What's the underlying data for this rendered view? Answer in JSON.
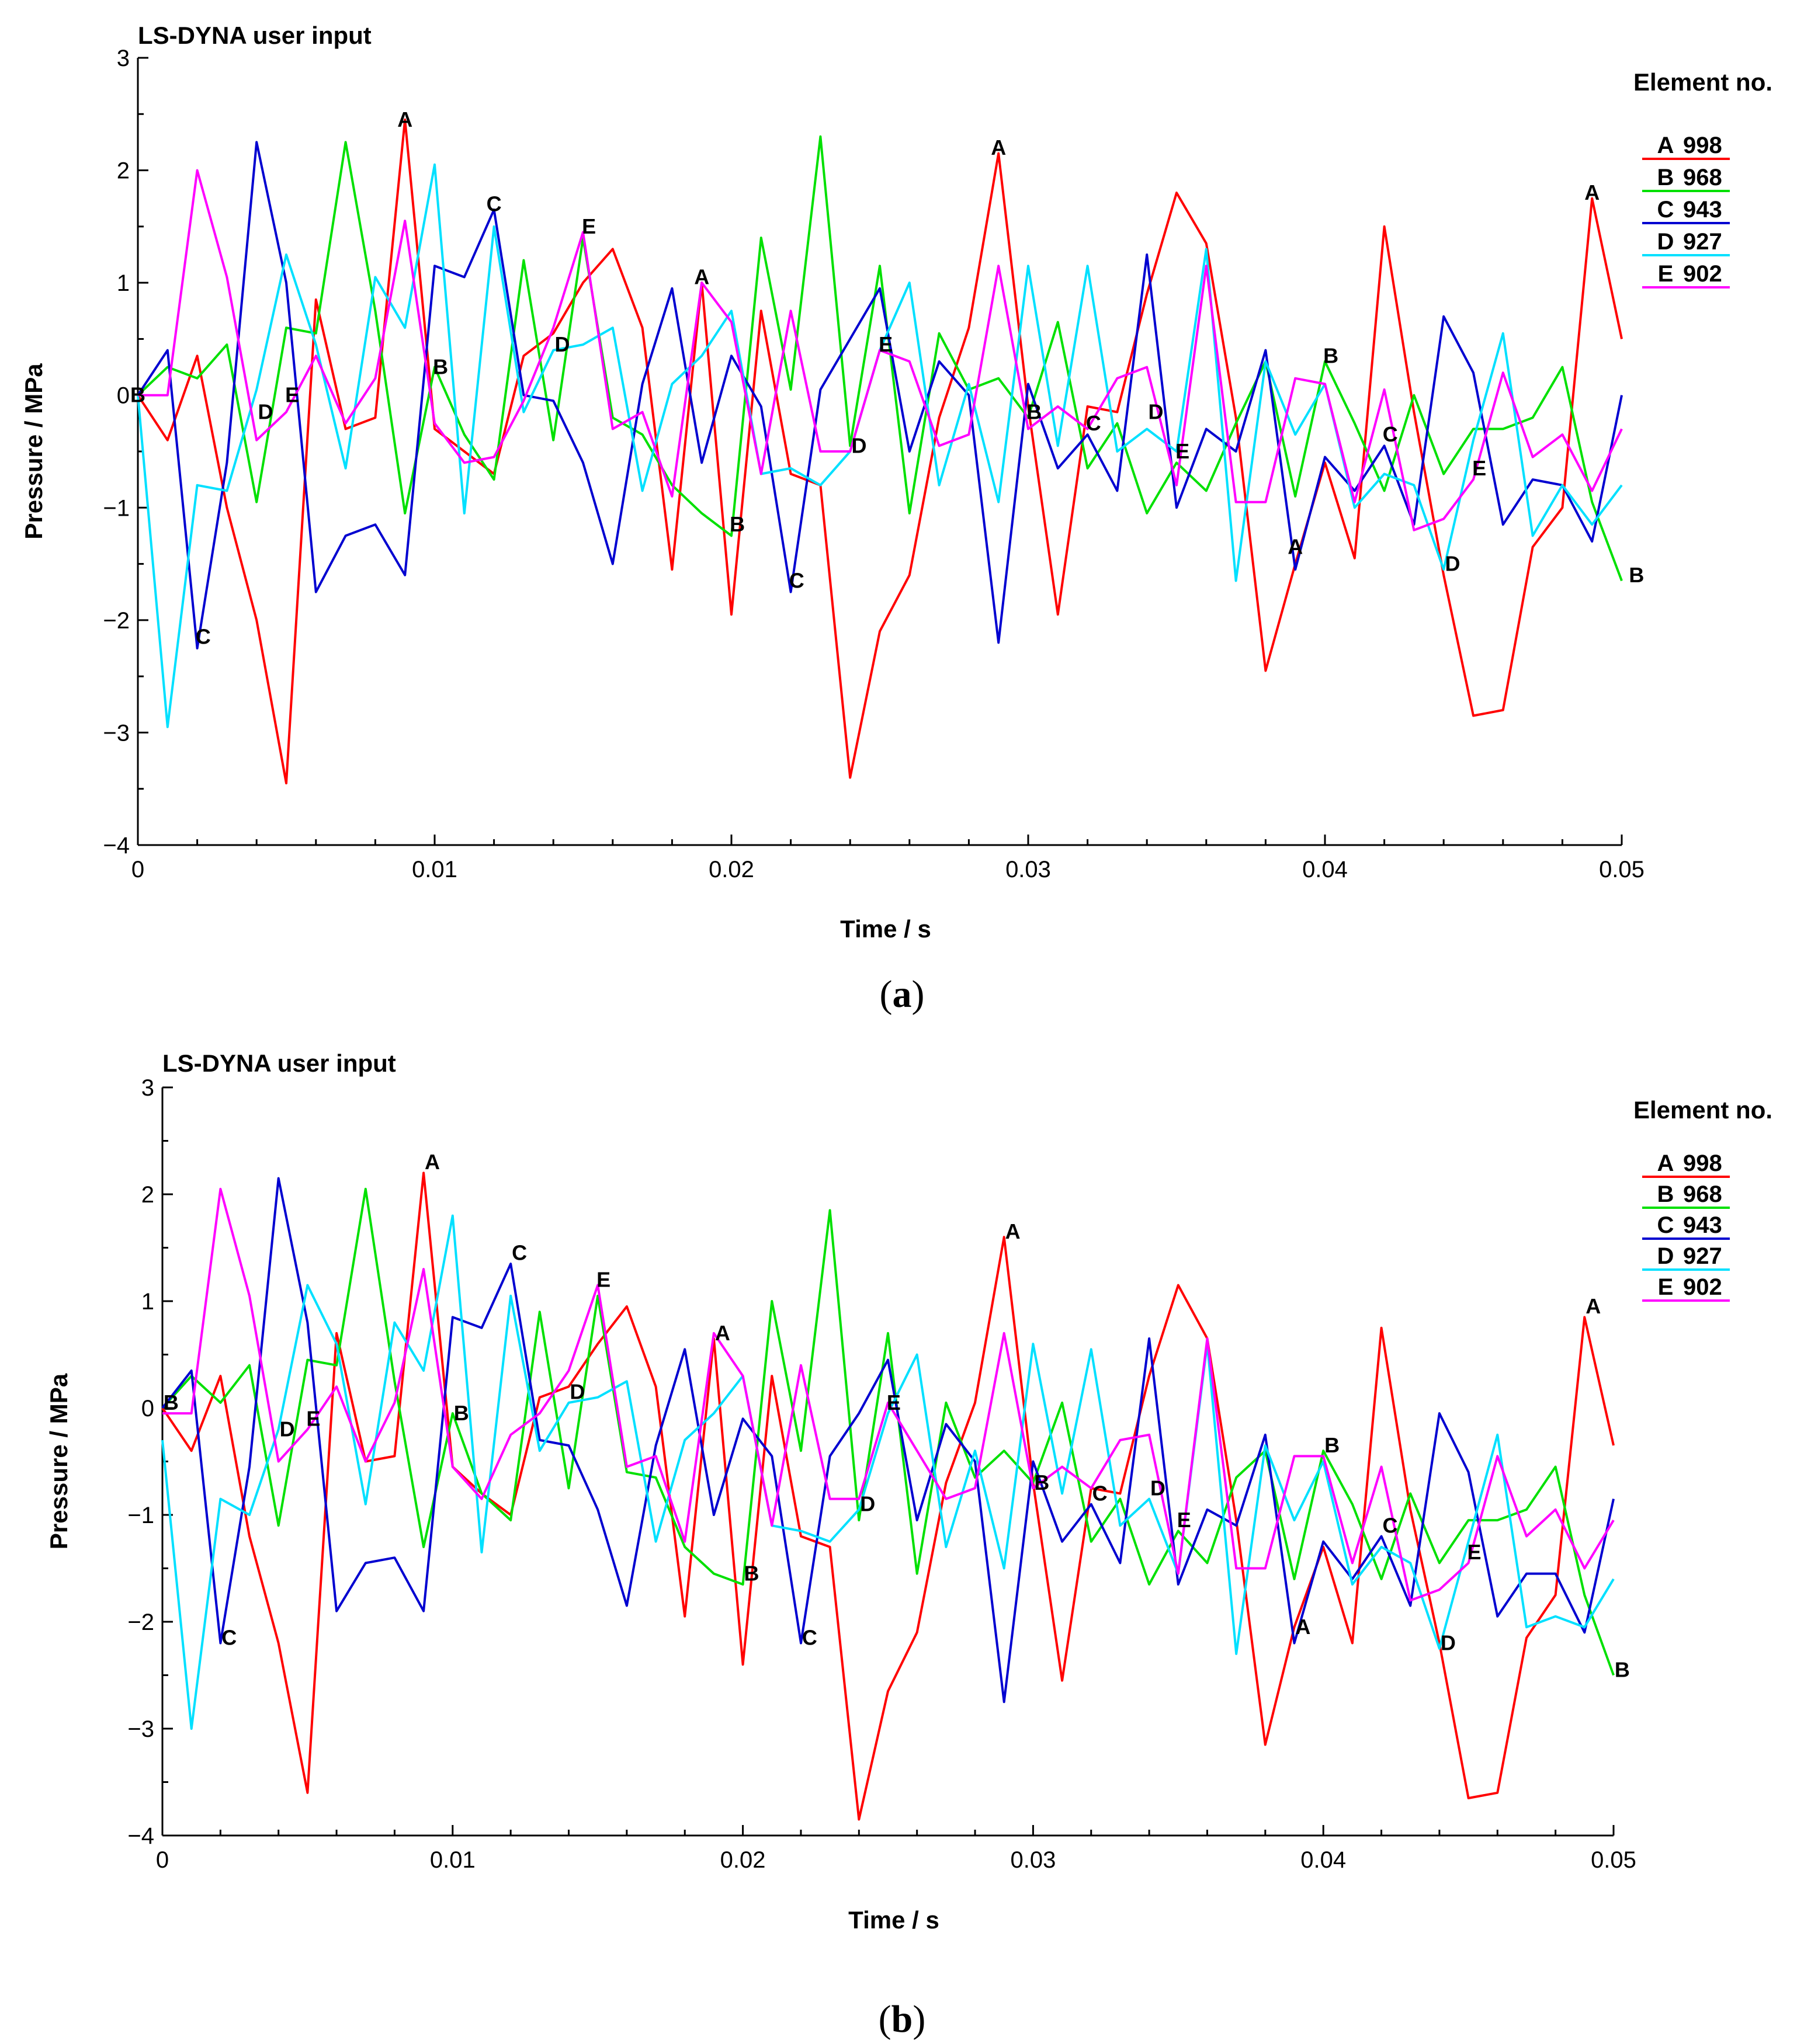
{
  "chart_data": [
    {
      "type": "line",
      "panel_label": "a",
      "title": "LS-DYNA user input",
      "xlabel": "Time / s",
      "ylabel": "Pressure / MPa",
      "xlim": [
        0,
        0.05
      ],
      "ylim": [
        -4,
        3
      ],
      "xticks": [
        "0",
        "0.01",
        "0.02",
        "0.03",
        "0.04",
        "0.05"
      ],
      "yticks": [
        "3",
        "2",
        "1",
        "0",
        "−1",
        "−2",
        "−3",
        "−4"
      ],
      "legend_title": "Element no.",
      "x": [
        0,
        0.001,
        0.002,
        0.003,
        0.004,
        0.005,
        0.006,
        0.007,
        0.008,
        0.009,
        0.01,
        0.011,
        0.012,
        0.013,
        0.014,
        0.015,
        0.016,
        0.017,
        0.018,
        0.019,
        0.02,
        0.021,
        0.022,
        0.023,
        0.024,
        0.025,
        0.026,
        0.027,
        0.028,
        0.029,
        0.03,
        0.031,
        0.032,
        0.033,
        0.034,
        0.035,
        0.036,
        0.037,
        0.038,
        0.039,
        0.04,
        0.041,
        0.042,
        0.043,
        0.044,
        0.045,
        0.046,
        0.047,
        0.048,
        0.049,
        0.05
      ],
      "series": [
        {
          "marker": "A",
          "name": "998",
          "color": "#ff0000",
          "values": [
            0,
            -0.4,
            0.35,
            -1,
            -2,
            -3.45,
            0.85,
            -0.3,
            -0.2,
            2.45,
            -0.3,
            -0.5,
            -0.7,
            0.35,
            0.55,
            1,
            1.3,
            0.6,
            -1.55,
            1,
            -1.95,
            0.75,
            -0.7,
            -0.8,
            -3.4,
            -2.1,
            -1.6,
            -0.2,
            0.6,
            2.15,
            -0.1,
            -1.95,
            -0.1,
            -0.15,
            0.9,
            1.8,
            1.35,
            -0.2,
            -2.45,
            -1.5,
            -0.6,
            -1.45,
            1.5,
            -0.15,
            -1.6,
            -2.85,
            -2.8,
            -1.35,
            -1,
            1.75,
            0.5
          ],
          "labels": [
            [
              0.009,
              2.45
            ],
            [
              0.019,
              1.05
            ],
            [
              0.029,
              2.2
            ],
            [
              0.039,
              -1.35
            ],
            [
              0.049,
              1.8
            ]
          ]
        },
        {
          "marker": "B",
          "name": "968",
          "color": "#00e000",
          "values": [
            0,
            0.25,
            0.15,
            0.45,
            -0.95,
            0.6,
            0.55,
            2.25,
            0.75,
            -1.05,
            0.25,
            -0.35,
            -0.75,
            1.2,
            -0.4,
            1.4,
            -0.2,
            -0.35,
            -0.8,
            -1.05,
            -1.25,
            1.4,
            0.05,
            2.3,
            -0.45,
            1.15,
            -1.05,
            0.55,
            0.05,
            0.15,
            -0.2,
            0.65,
            -0.65,
            -0.25,
            -1.05,
            -0.6,
            -0.85,
            -0.25,
            0.3,
            -0.9,
            0.3,
            -0.25,
            -0.85,
            0,
            -0.7,
            -0.3,
            -0.3,
            -0.2,
            0.25,
            -0.95,
            -1.65
          ],
          "labels": [
            [
              0,
              0
            ],
            [
              0.0102,
              0.25
            ],
            [
              0.0202,
              -1.15
            ],
            [
              0.0302,
              -0.15
            ],
            [
              0.0402,
              0.35
            ],
            [
              0.0505,
              -1.6
            ]
          ]
        },
        {
          "marker": "C",
          "name": "943",
          "color": "#0000d0",
          "values": [
            0,
            0.4,
            -2.25,
            -0.6,
            2.25,
            1,
            -1.75,
            -1.25,
            -1.15,
            -1.6,
            1.15,
            1.05,
            1.65,
            0,
            -0.05,
            -0.6,
            -1.5,
            0.1,
            0.95,
            -0.6,
            0.35,
            -0.1,
            -1.75,
            0.05,
            0.5,
            0.95,
            -0.5,
            0.3,
            0,
            -2.2,
            0.1,
            -0.65,
            -0.35,
            -0.85,
            1.25,
            -1,
            -0.3,
            -0.5,
            0.4,
            -1.55,
            -0.55,
            -0.85,
            -0.45,
            -1.15,
            0.7,
            0.2,
            -1.15,
            -0.75,
            -0.8,
            -1.3,
            0
          ],
          "labels": [
            [
              0.0022,
              -2.15
            ],
            [
              0.012,
              1.7
            ],
            [
              0.0222,
              -1.65
            ],
            [
              0.0322,
              -0.25
            ],
            [
              0.0422,
              -0.35
            ]
          ]
        },
        {
          "marker": "D",
          "name": "927",
          "color": "#00e0ff",
          "values": [
            0,
            -2.95,
            -0.8,
            -0.85,
            0.05,
            1.25,
            0.45,
            -0.65,
            1.05,
            0.6,
            2.05,
            -1.05,
            1.5,
            -0.15,
            0.4,
            0.45,
            0.6,
            -0.85,
            0.1,
            0.35,
            0.75,
            -0.7,
            -0.65,
            -0.8,
            -0.5,
            0.4,
            1,
            -0.8,
            0.1,
            -0.95,
            1.15,
            -0.45,
            1.15,
            -0.5,
            -0.3,
            -0.5,
            1.3,
            -1.65,
            0.3,
            -0.35,
            0.1,
            -1,
            -0.7,
            -0.8,
            -1.55,
            -0.4,
            0.55,
            -1.25,
            -0.8,
            -1.15,
            -0.8
          ],
          "labels": [
            [
              0.0043,
              -0.15
            ],
            [
              0.0143,
              0.45
            ],
            [
              0.0243,
              -0.45
            ],
            [
              0.0343,
              -0.15
            ],
            [
              0.0443,
              -1.5
            ]
          ]
        },
        {
          "marker": "E",
          "name": "902",
          "color": "#ff00ff",
          "values": [
            0,
            0,
            2,
            1.05,
            -0.4,
            -0.15,
            0.35,
            -0.25,
            0.15,
            1.55,
            -0.25,
            -0.6,
            -0.55,
            -0.05,
            0.6,
            1.45,
            -0.3,
            -0.15,
            -0.9,
            1,
            0.65,
            -0.7,
            0.75,
            -0.5,
            -0.5,
            0.4,
            0.3,
            -0.45,
            -0.35,
            1.15,
            -0.3,
            -0.1,
            -0.3,
            0.15,
            0.25,
            -0.8,
            1.15,
            -0.95,
            -0.95,
            0.15,
            0.1,
            -0.95,
            0.05,
            -1.2,
            -1.1,
            -0.75,
            0.2,
            -0.55,
            -0.35,
            -0.85,
            -0.3
          ],
          "labels": [
            [
              0.0052,
              0
            ],
            [
              0.0152,
              1.5
            ],
            [
              0.0252,
              0.45
            ],
            [
              0.0352,
              -0.5
            ],
            [
              0.0452,
              -0.65
            ]
          ]
        }
      ]
    },
    {
      "type": "line",
      "panel_label": "b",
      "title": "LS-DYNA user input",
      "xlabel": "Time / s",
      "ylabel": "Pressure / MPa",
      "xlim": [
        0,
        0.05
      ],
      "ylim": [
        -4,
        3
      ],
      "xticks": [
        "0",
        "0.01",
        "0.02",
        "0.03",
        "0.04",
        "0.05"
      ],
      "yticks": [
        "3",
        "2",
        "1",
        "0",
        "−1",
        "−2",
        "−3",
        "−4"
      ],
      "legend_title": "Element no.",
      "x": [
        0,
        0.001,
        0.002,
        0.003,
        0.004,
        0.005,
        0.006,
        0.007,
        0.008,
        0.009,
        0.01,
        0.011,
        0.012,
        0.013,
        0.014,
        0.015,
        0.016,
        0.017,
        0.018,
        0.019,
        0.02,
        0.021,
        0.022,
        0.023,
        0.024,
        0.025,
        0.026,
        0.027,
        0.028,
        0.029,
        0.03,
        0.031,
        0.032,
        0.033,
        0.034,
        0.035,
        0.036,
        0.037,
        0.038,
        0.039,
        0.04,
        0.041,
        0.042,
        0.043,
        0.044,
        0.045,
        0.046,
        0.047,
        0.048,
        0.049,
        0.05
      ],
      "series": [
        {
          "marker": "A",
          "name": "998",
          "color": "#ff0000",
          "values": [
            0,
            -0.4,
            0.3,
            -1.2,
            -2.2,
            -3.6,
            0.7,
            -0.5,
            -0.45,
            2.2,
            -0.55,
            -0.8,
            -1,
            0.1,
            0.2,
            0.6,
            0.95,
            0.2,
            -1.95,
            0.65,
            -2.4,
            0.3,
            -1.2,
            -1.3,
            -3.85,
            -2.65,
            -2.1,
            -0.7,
            0.05,
            1.6,
            -0.7,
            -2.55,
            -0.75,
            -0.8,
            0.3,
            1.15,
            0.65,
            -1.05,
            -3.15,
            -2.05,
            -1.3,
            -2.2,
            0.75,
            -0.95,
            -2.2,
            -3.65,
            -3.6,
            -2.15,
            -1.75,
            0.85,
            -0.35
          ],
          "labels": [
            [
              0.0093,
              2.3
            ],
            [
              0.0193,
              0.7
            ],
            [
              0.0293,
              1.65
            ],
            [
              0.0393,
              -2.05
            ],
            [
              0.0493,
              0.95
            ]
          ]
        },
        {
          "marker": "B",
          "name": "968",
          "color": "#00e000",
          "values": [
            0,
            0.3,
            0.05,
            0.4,
            -1.1,
            0.45,
            0.4,
            2.05,
            0.25,
            -1.3,
            -0.05,
            -0.8,
            -1.05,
            0.9,
            -0.75,
            1.05,
            -0.6,
            -0.65,
            -1.3,
            -1.55,
            -1.65,
            1,
            -0.4,
            1.85,
            -1.05,
            0.7,
            -1.55,
            0.05,
            -0.65,
            -0.4,
            -0.7,
            0.05,
            -1.25,
            -0.85,
            -1.65,
            -1.15,
            -1.45,
            -0.65,
            -0.4,
            -1.6,
            -0.4,
            -0.9,
            -1.6,
            -0.8,
            -1.45,
            -1.05,
            -1.05,
            -0.95,
            -0.55,
            -1.75,
            -2.5
          ],
          "labels": [
            [
              0.0003,
              0.05
            ],
            [
              0.0103,
              -0.05
            ],
            [
              0.0203,
              -1.55
            ],
            [
              0.0303,
              -0.7
            ],
            [
              0.0403,
              -0.35
            ],
            [
              0.0503,
              -2.45
            ]
          ]
        },
        {
          "marker": "C",
          "name": "943",
          "color": "#0000d0",
          "values": [
            0,
            0.35,
            -2.2,
            -0.55,
            2.15,
            0.8,
            -1.9,
            -1.45,
            -1.4,
            -1.9,
            0.85,
            0.75,
            1.35,
            -0.3,
            -0.35,
            -0.95,
            -1.85,
            -0.35,
            0.55,
            -1,
            -0.1,
            -0.45,
            -2.2,
            -0.45,
            -0.05,
            0.45,
            -1.05,
            -0.15,
            -0.5,
            -2.75,
            -0.5,
            -1.25,
            -0.9,
            -1.45,
            0.65,
            -1.65,
            -0.95,
            -1.1,
            -0.25,
            -2.2,
            -1.25,
            -1.6,
            -1.2,
            -1.85,
            -0.05,
            -0.6,
            -1.95,
            -1.55,
            -1.55,
            -2.1,
            -0.85
          ],
          "labels": [
            [
              0.0023,
              -2.15
            ],
            [
              0.0123,
              1.45
            ],
            [
              0.0223,
              -2.15
            ],
            [
              0.0323,
              -0.8
            ],
            [
              0.0423,
              -1.1
            ]
          ]
        },
        {
          "marker": "D",
          "name": "927",
          "color": "#00e0ff",
          "values": [
            -0.3,
            -3,
            -0.85,
            -1,
            -0.2,
            1.15,
            0.6,
            -0.9,
            0.8,
            0.35,
            1.8,
            -1.35,
            1.05,
            -0.4,
            0.05,
            0.1,
            0.25,
            -1.25,
            -0.3,
            -0.05,
            0.3,
            -1.1,
            -1.15,
            -1.25,
            -0.95,
            -0.05,
            0.5,
            -1.3,
            -0.4,
            -1.5,
            0.6,
            -0.8,
            0.55,
            -1.1,
            -0.85,
            -1.55,
            0.6,
            -2.3,
            -0.35,
            -1.05,
            -0.5,
            -1.65,
            -1.3,
            -1.45,
            -2.25,
            -1.25,
            -0.25,
            -2.05,
            -1.95,
            -2.05,
            -1.6
          ],
          "labels": [
            [
              0.0043,
              -0.2
            ],
            [
              0.0143,
              0.15
            ],
            [
              0.0243,
              -0.9
            ],
            [
              0.0343,
              -0.75
            ],
            [
              0.0443,
              -2.2
            ]
          ]
        },
        {
          "marker": "E",
          "name": "902",
          "color": "#ff00ff",
          "values": [
            -0.05,
            -0.05,
            2.05,
            1.05,
            -0.5,
            -0.2,
            0.2,
            -0.5,
            0.05,
            1.3,
            -0.55,
            -0.85,
            -0.25,
            -0.05,
            0.35,
            1.15,
            -0.55,
            -0.45,
            -1.25,
            0.7,
            0.3,
            -1.1,
            0.4,
            -0.85,
            -0.85,
            0.05,
            -0.4,
            -0.85,
            -0.75,
            0.7,
            -0.75,
            -0.55,
            -0.75,
            -0.3,
            -0.25,
            -1.55,
            0.65,
            -1.5,
            -1.5,
            -0.45,
            -0.45,
            -1.45,
            -0.55,
            -1.8,
            -1.7,
            -1.45,
            -0.45,
            -1.2,
            -0.95,
            -1.5,
            -1.05
          ],
          "labels": [
            [
              0.0052,
              -0.1
            ],
            [
              0.0152,
              1.2
            ],
            [
              0.0252,
              0.05
            ],
            [
              0.0352,
              -1.05
            ],
            [
              0.0452,
              -1.35
            ]
          ]
        }
      ]
    }
  ]
}
